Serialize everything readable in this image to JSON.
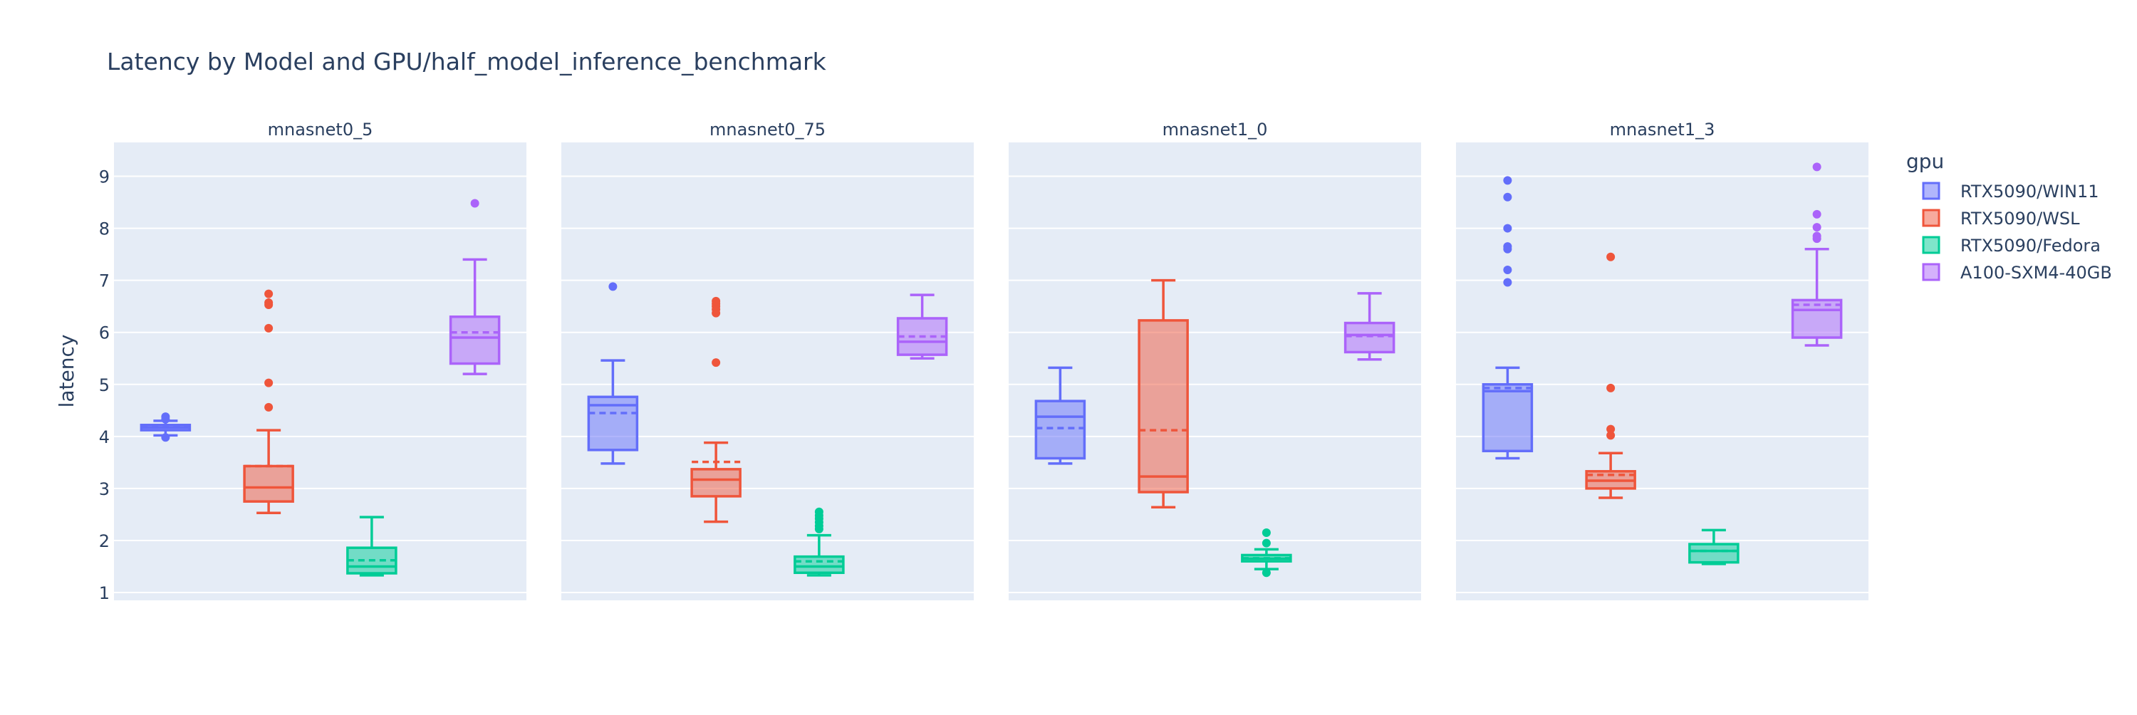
{
  "chart_data": {
    "type": "box",
    "title": "Latency by Model and GPU/half_model_inference_benchmark",
    "ylabel": "latency",
    "xlabel": "",
    "ylim": [
      0.85,
      9.65
    ],
    "yticks": [
      1,
      2,
      3,
      4,
      5,
      6,
      7,
      8,
      9
    ],
    "grid": true,
    "legend": {
      "title": "gpu",
      "placement": "right"
    },
    "series": [
      {
        "name": "RTX5090/WIN11",
        "color": "#636efa"
      },
      {
        "name": "RTX5090/WSL",
        "color": "#ef553b"
      },
      {
        "name": "RTX5090/Fedora",
        "color": "#00cc96"
      },
      {
        "name": "A100-SXM4-40GB",
        "color": "#ab63fa"
      }
    ],
    "facets": [
      {
        "name": "mnasnet0_5",
        "boxes": [
          {
            "series": "RTX5090/WIN11",
            "min": 4.02,
            "q1": 4.12,
            "median": 4.17,
            "q3": 4.22,
            "max": 4.3,
            "mean": 4.18,
            "outliers": [
              4.38,
              4.33,
              3.98
            ]
          },
          {
            "series": "RTX5090/WSL",
            "min": 2.53,
            "q1": 2.75,
            "median": 3.02,
            "q3": 3.43,
            "max": 4.12,
            "mean": 3.43,
            "outliers": [
              4.56,
              5.03,
              6.08,
              6.53,
              6.57,
              6.74
            ]
          },
          {
            "series": "RTX5090/Fedora",
            "min": 1.33,
            "q1": 1.37,
            "median": 1.5,
            "q3": 1.86,
            "max": 2.45,
            "mean": 1.62,
            "outliers": []
          },
          {
            "series": "A100-SXM4-40GB",
            "min": 5.2,
            "q1": 5.4,
            "median": 5.9,
            "q3": 6.3,
            "max": 7.4,
            "mean": 6.0,
            "outliers": [
              8.48
            ]
          }
        ]
      },
      {
        "name": "mnasnet0_75",
        "boxes": [
          {
            "series": "RTX5090/WIN11",
            "min": 3.48,
            "q1": 3.74,
            "median": 4.6,
            "q3": 4.76,
            "max": 5.46,
            "mean": 4.45,
            "outliers": [
              6.88
            ]
          },
          {
            "series": "RTX5090/WSL",
            "min": 2.36,
            "q1": 2.85,
            "median": 3.17,
            "q3": 3.37,
            "max": 3.88,
            "mean": 3.51,
            "outliers": [
              5.42,
              6.37,
              6.44,
              6.5,
              6.55,
              6.6
            ]
          },
          {
            "series": "RTX5090/Fedora",
            "min": 1.33,
            "q1": 1.38,
            "median": 1.5,
            "q3": 1.69,
            "max": 2.1,
            "mean": 1.6,
            "outliers": [
              2.22,
              2.28,
              2.35,
              2.42,
              2.48,
              2.55
            ]
          },
          {
            "series": "A100-SXM4-40GB",
            "min": 5.5,
            "q1": 5.57,
            "median": 5.82,
            "q3": 6.27,
            "max": 6.72,
            "mean": 5.92,
            "outliers": []
          }
        ]
      },
      {
        "name": "mnasnet1_0",
        "boxes": [
          {
            "series": "RTX5090/WIN11",
            "min": 3.48,
            "q1": 3.58,
            "median": 4.38,
            "q3": 4.68,
            "max": 5.32,
            "mean": 4.16,
            "outliers": []
          },
          {
            "series": "RTX5090/WSL",
            "min": 2.64,
            "q1": 2.93,
            "median": 3.23,
            "q3": 6.23,
            "max": 7.0,
            "mean": 4.12,
            "outliers": []
          },
          {
            "series": "RTX5090/Fedora",
            "min": 1.45,
            "q1": 1.6,
            "median": 1.65,
            "q3": 1.72,
            "max": 1.83,
            "mean": 1.66,
            "outliers": [
              1.38,
              1.95,
              2.15
            ]
          },
          {
            "series": "A100-SXM4-40GB",
            "min": 5.48,
            "q1": 5.62,
            "median": 5.95,
            "q3": 6.18,
            "max": 6.75,
            "mean": 5.93,
            "outliers": []
          }
        ]
      },
      {
        "name": "mnasnet1_3",
        "boxes": [
          {
            "series": "RTX5090/WIN11",
            "min": 3.58,
            "q1": 3.72,
            "median": 4.87,
            "q3": 5.0,
            "max": 5.32,
            "mean": 4.93,
            "outliers": [
              6.96,
              7.2,
              7.6,
              7.65,
              8.0,
              8.6,
              8.92
            ]
          },
          {
            "series": "RTX5090/WSL",
            "min": 2.82,
            "q1": 3.0,
            "median": 3.15,
            "q3": 3.33,
            "max": 3.68,
            "mean": 3.26,
            "outliers": [
              4.02,
              4.14,
              4.93,
              7.45
            ]
          },
          {
            "series": "RTX5090/Fedora",
            "min": 1.55,
            "q1": 1.58,
            "median": 1.8,
            "q3": 1.93,
            "max": 2.2,
            "mean": 1.8,
            "outliers": []
          },
          {
            "series": "A100-SXM4-40GB",
            "min": 5.75,
            "q1": 5.9,
            "median": 6.43,
            "q3": 6.62,
            "max": 7.6,
            "mean": 6.53,
            "outliers": [
              7.8,
              7.85,
              8.02,
              8.27,
              9.18
            ]
          }
        ]
      }
    ]
  }
}
